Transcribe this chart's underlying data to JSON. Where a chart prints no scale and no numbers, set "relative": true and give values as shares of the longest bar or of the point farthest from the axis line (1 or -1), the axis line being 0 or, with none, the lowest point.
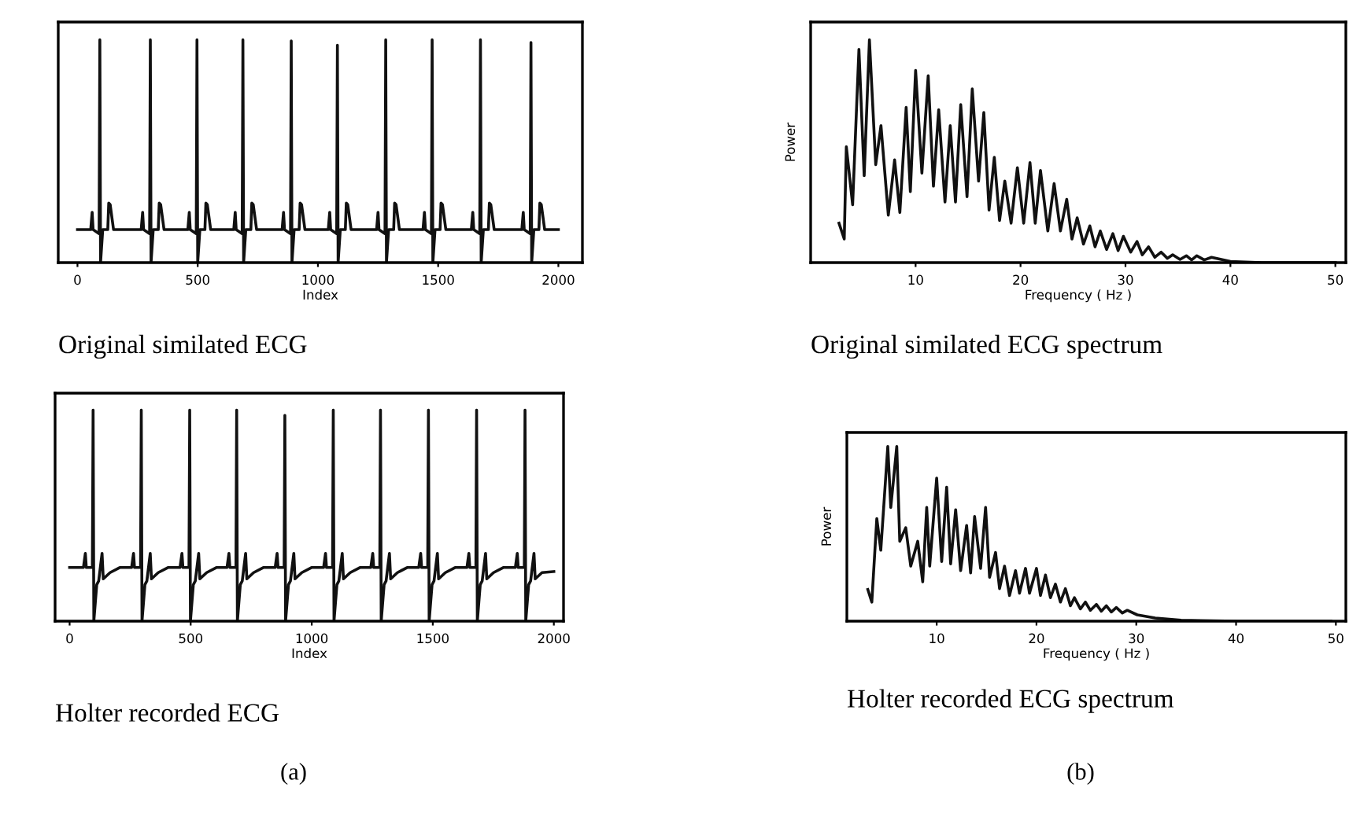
{
  "chart_data": [
    {
      "type": "line",
      "relative": true,
      "xlabel": "Index",
      "xlim": [
        -80,
        2100
      ],
      "xticks": [
        0,
        500,
        1000,
        1500,
        2000
      ],
      "annotations": [
        "Original similated ECG"
      ],
      "series": [
        {
          "color": "#111111",
          "x": [
            0,
            55,
            61,
            65,
            90,
            93,
            96,
            105,
            126,
            130,
            136,
            150,
            265,
            271,
            275,
            300,
            303,
            306,
            315,
            336,
            340,
            346,
            360,
            459,
            465,
            469,
            494,
            497,
            500,
            509,
            530,
            534,
            540,
            554,
            650,
            656,
            660,
            685,
            688,
            691,
            700,
            721,
            725,
            731,
            745,
            851,
            857,
            861,
            886,
            889,
            892,
            901,
            922,
            926,
            932,
            946,
            1043,
            1049,
            1053,
            1078,
            1081,
            1084,
            1093,
            1114,
            1118,
            1124,
            1138,
            1244,
            1250,
            1254,
            1279,
            1282,
            1285,
            1294,
            1315,
            1319,
            1325,
            1339,
            1437,
            1443,
            1447,
            1472,
            1475,
            1478,
            1487,
            1508,
            1512,
            1518,
            1532,
            1638,
            1644,
            1648,
            1673,
            1676,
            1679,
            1688,
            1709,
            1713,
            1719,
            1733,
            1848,
            1854,
            1858,
            1883,
            1886,
            1889,
            1898,
            1919,
            1923,
            1929,
            1943,
            2000
          ],
          "values": [
            0.148,
            0.148,
            0.226,
            0.148,
            0.13,
            1.0,
            0.0,
            0.148,
            0.148,
            0.267,
            0.26,
            0.148,
            0.148,
            0.226,
            0.148,
            0.13,
            1.0,
            0.0,
            0.148,
            0.148,
            0.267,
            0.26,
            0.148,
            0.148,
            0.226,
            0.148,
            0.13,
            1.0,
            0.0,
            0.148,
            0.148,
            0.267,
            0.26,
            0.148,
            0.148,
            0.226,
            0.148,
            0.13,
            1.0,
            0.0,
            0.148,
            0.148,
            0.267,
            0.26,
            0.148,
            0.148,
            0.226,
            0.148,
            0.13,
            0.995,
            0.0,
            0.148,
            0.148,
            0.267,
            0.26,
            0.148,
            0.148,
            0.226,
            0.148,
            0.13,
            0.976,
            0.0,
            0.148,
            0.148,
            0.267,
            0.26,
            0.148,
            0.148,
            0.226,
            0.148,
            0.13,
            1.0,
            0.0,
            0.148,
            0.148,
            0.267,
            0.26,
            0.148,
            0.148,
            0.226,
            0.148,
            0.13,
            1.0,
            0.0,
            0.148,
            0.148,
            0.267,
            0.26,
            0.148,
            0.148,
            0.226,
            0.148,
            0.13,
            1.0,
            0.0,
            0.148,
            0.148,
            0.267,
            0.26,
            0.148,
            0.148,
            0.226,
            0.148,
            0.13,
            0.988,
            0.0,
            0.148,
            0.148,
            0.267,
            0.26,
            0.148,
            0.148
          ]
        }
      ]
    },
    {
      "type": "line",
      "relative": true,
      "xlabel": "Index",
      "xlim": [
        -60,
        2040
      ],
      "xticks": [
        0,
        500,
        1000,
        1500,
        2000
      ],
      "annotations": [
        "Holter recorded ECG",
        "(a)"
      ],
      "series": [
        {
          "color": "#111111",
          "x": [
            0,
            57,
            65,
            69,
            94,
            97,
            100,
            112,
            120,
            134,
            139,
            167,
            207,
            256,
            264,
            268,
            293,
            296,
            299,
            311,
            319,
            333,
            338,
            366,
            406,
            456,
            464,
            468,
            493,
            496,
            499,
            511,
            519,
            533,
            538,
            566,
            606,
            650,
            658,
            662,
            687,
            690,
            693,
            705,
            713,
            727,
            732,
            760,
            800,
            849,
            857,
            861,
            886,
            889,
            892,
            904,
            912,
            926,
            931,
            959,
            999,
            1049,
            1057,
            1061,
            1086,
            1089,
            1092,
            1104,
            1112,
            1126,
            1131,
            1159,
            1199,
            1244,
            1252,
            1256,
            1281,
            1284,
            1287,
            1299,
            1307,
            1321,
            1326,
            1354,
            1394,
            1442,
            1450,
            1454,
            1479,
            1482,
            1485,
            1497,
            1505,
            1519,
            1524,
            1552,
            1592,
            1641,
            1649,
            1653,
            1678,
            1681,
            1684,
            1696,
            1704,
            1718,
            1723,
            1751,
            1791,
            1841,
            1849,
            1853,
            1878,
            1881,
            1884,
            1896,
            1904,
            1918,
            1923,
            1951,
            2000
          ],
          "values": [
            0.254,
            0.254,
            0.321,
            0.254,
            0.254,
            1.0,
            0.0,
            0.173,
            0.19,
            0.321,
            0.2,
            0.23,
            0.254,
            0.254,
            0.321,
            0.254,
            0.254,
            1.0,
            0.0,
            0.173,
            0.19,
            0.321,
            0.2,
            0.23,
            0.254,
            0.254,
            0.321,
            0.254,
            0.254,
            1.0,
            0.0,
            0.173,
            0.19,
            0.321,
            0.2,
            0.23,
            0.254,
            0.254,
            0.321,
            0.254,
            0.254,
            1.0,
            0.0,
            0.173,
            0.19,
            0.321,
            0.2,
            0.23,
            0.254,
            0.254,
            0.321,
            0.254,
            0.254,
            0.975,
            0.0,
            0.173,
            0.19,
            0.321,
            0.2,
            0.23,
            0.254,
            0.254,
            0.321,
            0.254,
            0.254,
            1.0,
            0.0,
            0.173,
            0.19,
            0.321,
            0.2,
            0.23,
            0.254,
            0.254,
            0.321,
            0.254,
            0.254,
            1.0,
            0.0,
            0.173,
            0.19,
            0.321,
            0.2,
            0.23,
            0.254,
            0.254,
            0.321,
            0.254,
            0.254,
            1.0,
            0.0,
            0.173,
            0.19,
            0.321,
            0.2,
            0.23,
            0.254,
            0.254,
            0.321,
            0.254,
            0.254,
            1.0,
            0.0,
            0.173,
            0.19,
            0.321,
            0.2,
            0.23,
            0.254,
            0.254,
            0.321,
            0.254,
            0.254,
            1.0,
            0.0,
            0.173,
            0.19,
            0.321,
            0.2,
            0.23,
            0.235
          ]
        }
      ]
    },
    {
      "type": "line",
      "relative": true,
      "xlabel": "Frequency ( Hz )",
      "ylabel": "Power",
      "xlim": [
        0,
        51
      ],
      "xticks": [
        10,
        20,
        30,
        40,
        50
      ],
      "annotations": [
        "Original similated ECG spectrum"
      ],
      "series": [
        {
          "color": "#111111",
          "x": [
            2.7,
            3.2,
            3.4,
            4.0,
            4.6,
            5.1,
            5.6,
            6.2,
            6.7,
            7.4,
            8.0,
            8.5,
            9.1,
            9.5,
            10.0,
            10.6,
            11.2,
            11.7,
            12.2,
            12.8,
            13.3,
            13.8,
            14.3,
            14.9,
            15.4,
            16.0,
            16.5,
            17.0,
            17.5,
            18.0,
            18.5,
            19.1,
            19.7,
            20.3,
            20.9,
            21.4,
            21.9,
            22.6,
            23.2,
            23.8,
            24.4,
            24.9,
            25.4,
            26.0,
            26.6,
            27.1,
            27.6,
            28.2,
            28.8,
            29.3,
            29.8,
            30.5,
            31.1,
            31.6,
            32.2,
            32.8,
            33.4,
            34.0,
            34.5,
            35.2,
            35.8,
            36.3,
            36.8,
            37.5,
            38.2,
            40.0,
            43.0,
            50.0
          ],
          "values": [
            0.177,
            0.106,
            0.52,
            0.26,
            0.957,
            0.39,
            1.0,
            0.44,
            0.615,
            0.213,
            0.461,
            0.225,
            0.697,
            0.319,
            0.863,
            0.402,
            0.839,
            0.343,
            0.686,
            0.272,
            0.615,
            0.272,
            0.709,
            0.296,
            0.78,
            0.366,
            0.674,
            0.236,
            0.473,
            0.189,
            0.366,
            0.177,
            0.426,
            0.177,
            0.449,
            0.177,
            0.414,
            0.142,
            0.355,
            0.142,
            0.284,
            0.106,
            0.201,
            0.083,
            0.165,
            0.071,
            0.142,
            0.059,
            0.13,
            0.054,
            0.118,
            0.047,
            0.095,
            0.035,
            0.071,
            0.024,
            0.047,
            0.019,
            0.035,
            0.014,
            0.031,
            0.012,
            0.031,
            0.012,
            0.024,
            0.005,
            0.0,
            0.0
          ]
        }
      ]
    },
    {
      "type": "line",
      "relative": true,
      "xlabel": "Frequency ( Hz )",
      "ylabel": "Power",
      "xlim": [
        1,
        51
      ],
      "xticks": [
        10,
        20,
        30,
        40,
        50
      ],
      "annotations": [
        "Holter recorded ECG spectrum",
        "(b)"
      ],
      "series": [
        {
          "color": "#111111",
          "x": [
            3.1,
            3.5,
            4.0,
            4.4,
            5.1,
            5.4,
            6.0,
            6.3,
            6.9,
            7.4,
            8.1,
            8.6,
            9.0,
            9.3,
            10.0,
            10.5,
            11.0,
            11.4,
            11.9,
            12.4,
            13.0,
            13.4,
            13.8,
            14.4,
            14.9,
            15.3,
            15.9,
            16.3,
            16.8,
            17.3,
            17.9,
            18.3,
            18.9,
            19.3,
            20.0,
            20.4,
            20.9,
            21.4,
            21.9,
            22.4,
            22.9,
            23.4,
            23.8,
            24.4,
            24.9,
            25.4,
            26.0,
            26.5,
            27.0,
            27.5,
            28.0,
            28.6,
            29.1,
            30.1,
            31.9,
            34.5,
            40.2,
            49.5
          ],
          "values": [
            0.181,
            0.109,
            0.587,
            0.406,
            1.0,
            0.651,
            1.0,
            0.457,
            0.535,
            0.315,
            0.457,
            0.225,
            0.651,
            0.315,
            0.819,
            0.341,
            0.767,
            0.328,
            0.638,
            0.289,
            0.548,
            0.276,
            0.599,
            0.302,
            0.651,
            0.251,
            0.393,
            0.186,
            0.315,
            0.147,
            0.289,
            0.16,
            0.302,
            0.16,
            0.302,
            0.147,
            0.264,
            0.134,
            0.212,
            0.109,
            0.186,
            0.088,
            0.134,
            0.07,
            0.109,
            0.062,
            0.096,
            0.057,
            0.088,
            0.052,
            0.078,
            0.047,
            0.062,
            0.036,
            0.018,
            0.005,
            0.0,
            0.0
          ]
        }
      ]
    }
  ]
}
